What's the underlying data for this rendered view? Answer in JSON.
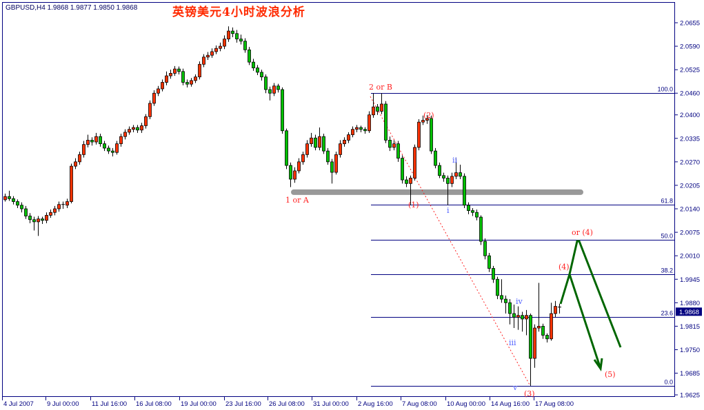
{
  "header": {
    "symbol_info": "GBPUSD,H4  1.9868 1.9877 1.9850 1.9868",
    "title": "英镑美元4小时波浪分析"
  },
  "chart_data": {
    "type": "candlestick",
    "symbol": "GBPUSD",
    "timeframe": "H4",
    "last_bar": {
      "open": 1.9868,
      "high": 1.9877,
      "low": 1.985,
      "close": 1.9868
    },
    "current_price_label": "1.9868",
    "ylim": [
      1.9625,
      2.0655
    ],
    "y_ticks": [
      "2.0655",
      "2.0590",
      "2.0525",
      "2.0460",
      "2.0400",
      "2.0335",
      "2.0270",
      "2.0205",
      "2.0140",
      "2.0075",
      "2.0010",
      "1.9945",
      "1.9880",
      "1.9815",
      "1.9750",
      "1.9685",
      "1.9625"
    ],
    "x_ticks": [
      "4 Jul 2007",
      "9 Jul 00:00",
      "11 Jul 16:00",
      "16 Jul 08:00",
      "19 Jul 00:00",
      "23 Jul 16:00",
      "26 Jul 08:00",
      "31 Jul 00:00",
      "2 Aug 16:00",
      "7 Aug 08:00",
      "10 Aug 00:00",
      "14 Aug 16:00",
      "17 Aug 08:00"
    ],
    "colors": {
      "up": "#ff3300",
      "down": "#00c000",
      "axis": "#000080",
      "fib": "#000080",
      "wave_red": "#ff2020",
      "wave_blue": "#5060ff",
      "projection": "#006600",
      "support_band": "#999999"
    },
    "candles": [
      [
        2.0165,
        2.0182,
        2.016,
        2.0174
      ],
      [
        2.0174,
        2.019,
        2.0162,
        2.0168
      ],
      [
        2.0168,
        2.0175,
        2.0152,
        2.016
      ],
      [
        2.016,
        2.0166,
        2.0142,
        2.015
      ],
      [
        2.015,
        2.0158,
        2.013,
        2.014
      ],
      [
        2.014,
        2.0148,
        2.0112,
        2.012
      ],
      [
        2.012,
        2.0128,
        2.01,
        2.011
      ],
      [
        2.011,
        2.0118,
        2.008,
        2.0104
      ],
      [
        2.0104,
        2.012,
        2.0065,
        2.0112
      ],
      [
        2.0112,
        2.0118,
        2.0098,
        2.0108
      ],
      [
        2.0108,
        2.013,
        2.01,
        2.0122
      ],
      [
        2.0122,
        2.0138,
        2.0115,
        2.013
      ],
      [
        2.013,
        2.0148,
        2.0122,
        2.014
      ],
      [
        2.014,
        2.016,
        2.0132,
        2.0152
      ],
      [
        2.0152,
        2.016,
        2.014,
        2.015
      ],
      [
        2.015,
        2.0168,
        2.0142,
        2.016
      ],
      [
        2.016,
        2.0265,
        2.0155,
        2.0258
      ],
      [
        2.0258,
        2.028,
        2.025,
        2.027
      ],
      [
        2.027,
        2.0298,
        2.0262,
        2.029
      ],
      [
        2.029,
        2.0328,
        2.0282,
        2.0318
      ],
      [
        2.0318,
        2.0345,
        2.031,
        2.033
      ],
      [
        2.033,
        2.0338,
        2.0315,
        2.0325
      ],
      [
        2.0325,
        2.035,
        2.0318,
        2.034
      ],
      [
        2.034,
        2.0348,
        2.0312,
        2.032
      ],
      [
        2.032,
        2.0328,
        2.03,
        2.0308
      ],
      [
        2.0308,
        2.0315,
        2.0292,
        2.03
      ],
      [
        2.03,
        2.0308,
        2.0285,
        2.0296
      ],
      [
        2.0296,
        2.0328,
        2.029,
        2.032
      ],
      [
        2.032,
        2.0348,
        2.0312,
        2.034
      ],
      [
        2.034,
        2.036,
        2.0332,
        2.0352
      ],
      [
        2.0352,
        2.0368,
        2.0345,
        2.036
      ],
      [
        2.036,
        2.0372,
        2.0352,
        2.0365
      ],
      [
        2.0365,
        2.0372,
        2.035,
        2.0358
      ],
      [
        2.0358,
        2.0378,
        2.035,
        2.037
      ],
      [
        2.037,
        2.0402,
        2.0362,
        2.0395
      ],
      [
        2.0395,
        2.044,
        2.0388,
        2.0432
      ],
      [
        2.0432,
        2.0468,
        2.0425,
        2.046
      ],
      [
        2.046,
        2.048,
        2.0452,
        2.0472
      ],
      [
        2.0472,
        2.0498,
        2.0465,
        2.049
      ],
      [
        2.049,
        2.052,
        2.0482,
        2.0508
      ],
      [
        2.0508,
        2.0525,
        2.05,
        2.0515
      ],
      [
        2.0515,
        2.0535,
        2.0508,
        2.0527
      ],
      [
        2.0527,
        2.0534,
        2.0512,
        2.052
      ],
      [
        2.052,
        2.0528,
        2.0482,
        2.049
      ],
      [
        2.049,
        2.0498,
        2.0476,
        2.0485
      ],
      [
        2.0485,
        2.0502,
        2.0478,
        2.0495
      ],
      [
        2.0495,
        2.0512,
        2.0488,
        2.0505
      ],
      [
        2.0505,
        2.0548,
        2.0498,
        2.054
      ],
      [
        2.054,
        2.0568,
        2.0532,
        2.056
      ],
      [
        2.056,
        2.0574,
        2.0552,
        2.0565
      ],
      [
        2.0565,
        2.0584,
        2.0558,
        2.0575
      ],
      [
        2.0575,
        2.0592,
        2.0568,
        2.0584
      ],
      [
        2.0584,
        2.06,
        2.0576,
        2.059
      ],
      [
        2.059,
        2.062,
        2.0582,
        2.061
      ],
      [
        2.061,
        2.0645,
        2.0602,
        2.0632
      ],
      [
        2.0632,
        2.0642,
        2.0615,
        2.0625
      ],
      [
        2.0625,
        2.0635,
        2.06,
        2.061
      ],
      [
        2.061,
        2.0622,
        2.0595,
        2.0604
      ],
      [
        2.0604,
        2.0612,
        2.0572,
        2.058
      ],
      [
        2.058,
        2.0588,
        2.0538,
        2.0546
      ],
      [
        2.0546,
        2.0555,
        2.0522,
        2.053
      ],
      [
        2.053,
        2.0538,
        2.051,
        2.0518
      ],
      [
        2.0518,
        2.0525,
        2.0495,
        2.0505
      ],
      [
        2.0505,
        2.0512,
        2.046,
        2.047
      ],
      [
        2.047,
        2.0478,
        2.044,
        2.046
      ],
      [
        2.046,
        2.0488,
        2.0452,
        2.048
      ],
      [
        2.048,
        2.0486,
        2.0462,
        2.047
      ],
      [
        2.047,
        2.0476,
        2.0348,
        2.0356
      ],
      [
        2.0356,
        2.0362,
        2.025,
        2.026
      ],
      [
        2.026,
        2.0268,
        2.02,
        2.0222
      ],
      [
        2.0222,
        2.0255,
        2.0212,
        2.0245
      ],
      [
        2.0245,
        2.028,
        2.0238,
        2.027
      ],
      [
        2.027,
        2.0298,
        2.0262,
        2.029
      ],
      [
        2.029,
        2.033,
        2.0282,
        2.032
      ],
      [
        2.032,
        2.035,
        2.0312,
        2.0336
      ],
      [
        2.0336,
        2.0345,
        2.0302,
        2.031
      ],
      [
        2.031,
        2.0365,
        2.0302,
        2.034
      ],
      [
        2.034,
        2.0348,
        2.0292,
        2.03
      ],
      [
        2.03,
        2.0308,
        2.0262,
        2.027
      ],
      [
        2.027,
        2.0278,
        2.021,
        2.0241
      ],
      [
        2.0241,
        2.0298,
        2.0235,
        2.029
      ],
      [
        2.029,
        2.033,
        2.0282,
        2.032
      ],
      [
        2.032,
        2.0338,
        2.0312,
        2.033
      ],
      [
        2.033,
        2.0352,
        2.0322,
        2.0345
      ],
      [
        2.0345,
        2.0368,
        2.0338,
        2.036
      ],
      [
        2.036,
        2.0372,
        2.0352,
        2.0365
      ],
      [
        2.0365,
        2.037,
        2.0352,
        2.036
      ],
      [
        2.036,
        2.0366,
        2.0348,
        2.0356
      ],
      [
        2.0356,
        2.041,
        2.035,
        2.04
      ],
      [
        2.04,
        2.046,
        2.0392,
        2.0422
      ],
      [
        2.0422,
        2.043,
        2.04,
        2.041
      ],
      [
        2.041,
        2.046,
        2.0402,
        2.043
      ],
      [
        2.043,
        2.0438,
        2.0322,
        2.033
      ],
      [
        2.033,
        2.034,
        2.03,
        2.031
      ],
      [
        2.031,
        2.033,
        2.0302,
        2.032
      ],
      [
        2.032,
        2.0328,
        2.027,
        2.028
      ],
      [
        2.028,
        2.0288,
        2.021,
        2.022
      ],
      [
        2.022,
        2.023,
        2.02,
        2.021
      ],
      [
        2.021,
        2.0232,
        2.015,
        2.0225
      ],
      [
        2.0225,
        2.0318,
        2.0218,
        2.031
      ],
      [
        2.031,
        2.0388,
        2.0302,
        2.038
      ],
      [
        2.038,
        2.0398,
        2.0372,
        2.0385
      ],
      [
        2.0385,
        2.04,
        2.0375,
        2.039
      ],
      [
        2.039,
        2.0398,
        2.0292,
        2.03
      ],
      [
        2.03,
        2.0308,
        2.0252,
        2.026
      ],
      [
        2.026,
        2.0268,
        2.0225,
        2.0232
      ],
      [
        2.0232,
        2.024,
        2.0215,
        2.0225
      ],
      [
        2.0225,
        2.0232,
        2.015,
        2.021
      ],
      [
        2.021,
        2.024,
        2.02,
        2.023
      ],
      [
        2.023,
        2.028,
        2.0222,
        2.024
      ],
      [
        2.024,
        2.0262,
        2.0222,
        2.023
      ],
      [
        2.023,
        2.0238,
        2.0142,
        2.015
      ],
      [
        2.015,
        2.0158,
        2.0125,
        2.0135
      ],
      [
        2.0135,
        2.0142,
        2.012,
        2.013
      ],
      [
        2.013,
        2.0138,
        2.0108,
        2.0117
      ],
      [
        2.0117,
        2.0122,
        2.004,
        2.005
      ],
      [
        2.005,
        2.0058,
        2.0,
        2.001
      ],
      [
        2.001,
        2.0018,
        1.9965,
        1.9975
      ],
      [
        1.9975,
        1.9982,
        1.9935,
        1.9945
      ],
      [
        1.9945,
        1.9952,
        1.989,
        1.99
      ],
      [
        1.99,
        1.9945,
        1.988,
        1.989
      ],
      [
        1.989,
        1.99,
        1.985,
        1.988
      ],
      [
        1.988,
        1.989,
        1.982,
        1.985
      ],
      [
        1.985,
        1.9875,
        1.981,
        1.984
      ],
      [
        1.984,
        1.987,
        1.9805,
        1.9845
      ],
      [
        1.9845,
        1.9855,
        1.98,
        1.9835
      ],
      [
        1.9835,
        1.986,
        1.979,
        1.9845
      ],
      [
        1.9845,
        1.985,
        1.965,
        1.9726
      ],
      [
        1.9726,
        1.982,
        1.97,
        1.981
      ],
      [
        1.981,
        1.9935,
        1.98,
        1.9815
      ],
      [
        1.9815,
        1.9822,
        1.978,
        1.979
      ],
      [
        1.979,
        1.9795,
        1.977,
        1.978
      ],
      [
        1.978,
        1.988,
        1.9775,
        1.985
      ],
      [
        1.985,
        1.9885,
        1.984,
        1.987
      ],
      [
        1.9868,
        1.9877,
        1.985,
        1.9868
      ]
    ],
    "fibonacci": {
      "high": 2.046,
      "low": 1.965,
      "levels": [
        {
          "label": "100.0",
          "ratio": 1.0
        },
        {
          "label": "61.8",
          "ratio": 0.618
        },
        {
          "label": "50.0",
          "ratio": 0.5
        },
        {
          "label": "38.2",
          "ratio": 0.382
        },
        {
          "label": "23.6",
          "ratio": 0.236
        },
        {
          "label": "0.0",
          "ratio": 0.0
        }
      ]
    },
    "support_band_price": 2.0186,
    "wave_labels": {
      "two_or_b": "2 or B",
      "one_or_a": "1 or A",
      "w1": "(1)",
      "w2": "(2)",
      "sub_i": "i",
      "sub_ii": "ii",
      "sub_iii": "iii",
      "sub_iv": "iv",
      "sub_v": "v",
      "w3": "(3)",
      "w4": "(4)",
      "w4_alt": "or  (4)",
      "w5": "(5)"
    }
  }
}
